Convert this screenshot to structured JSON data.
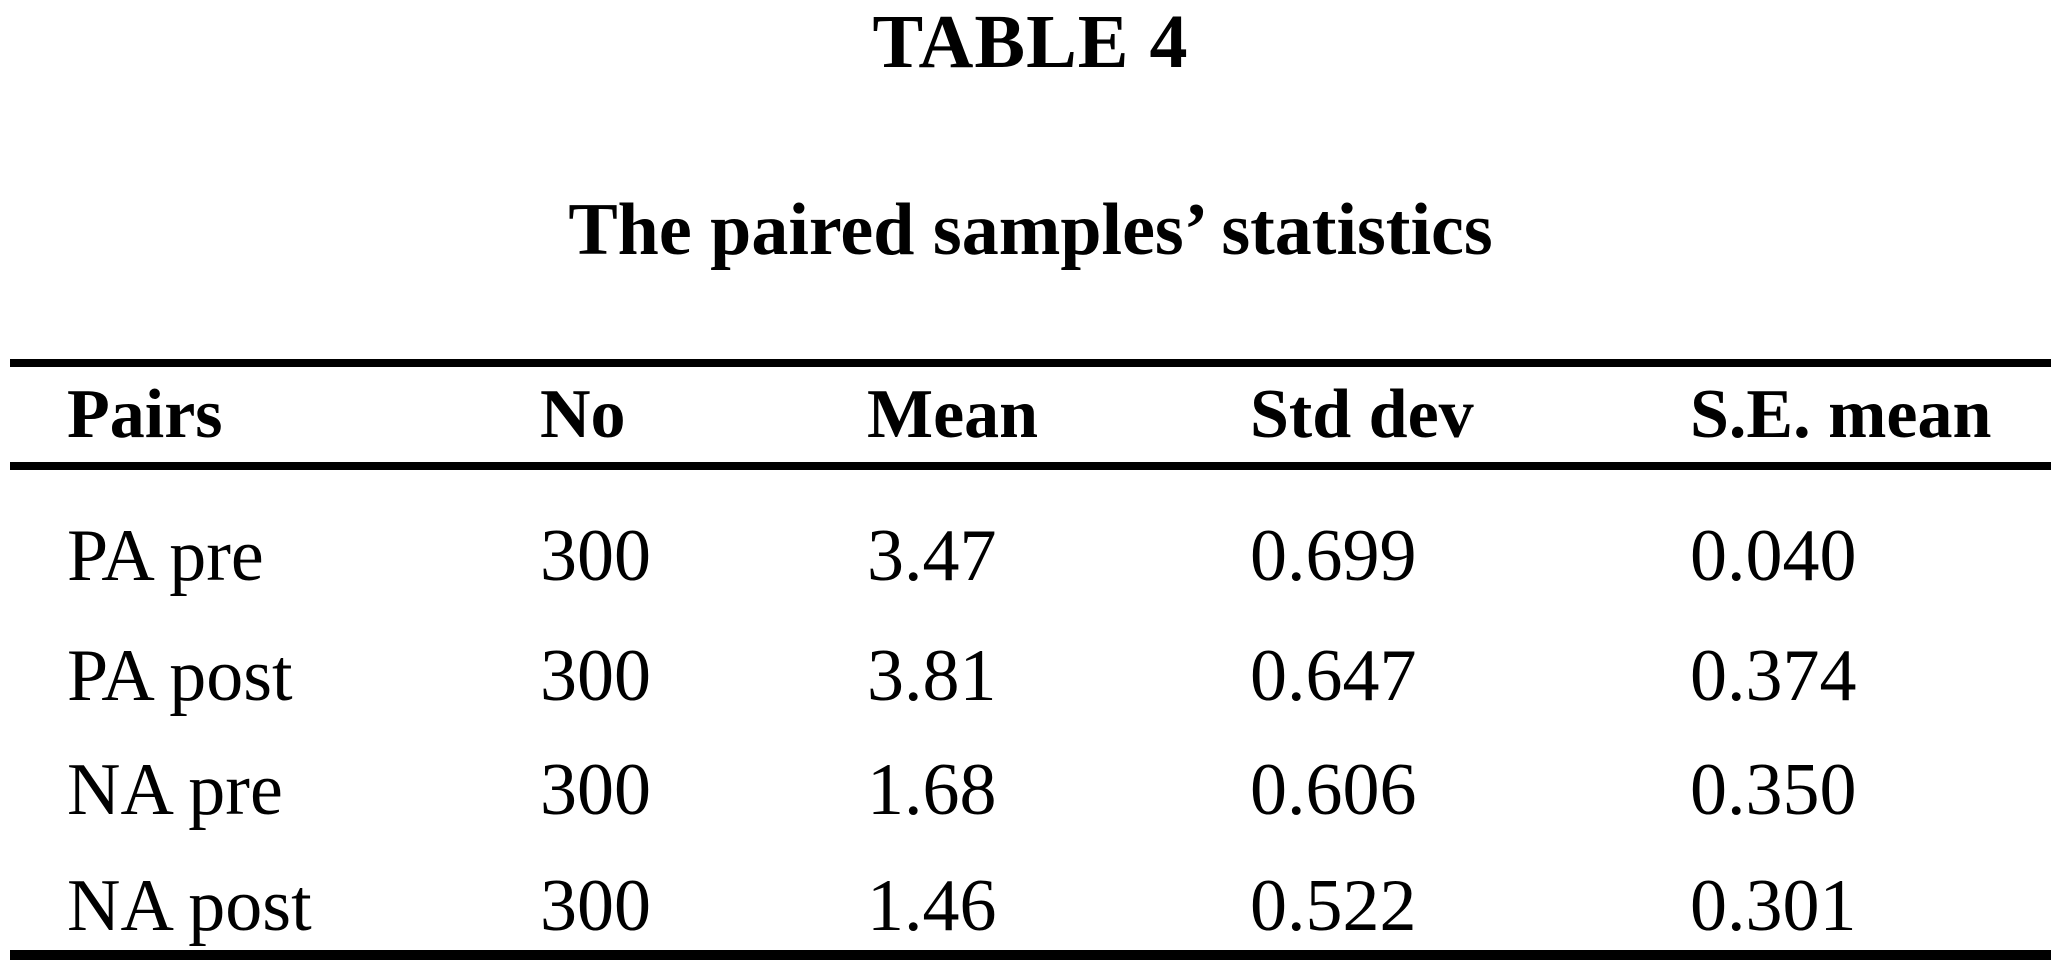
{
  "page": {
    "title": "TABLE 4",
    "subtitle": "The paired samples’ statistics"
  },
  "table": {
    "columns": {
      "pairs": "Pairs",
      "no": "No",
      "mean": "Mean",
      "std_dev": "Std dev",
      "se_mean": "S.E. mean"
    },
    "rows": [
      {
        "pairs": "PA pre",
        "no": "300",
        "mean": "3.47",
        "std_dev": "0.699",
        "se_mean": "0.040"
      },
      {
        "pairs": "PA post",
        "no": "300",
        "mean": "3.81",
        "std_dev": "0.647",
        "se_mean": "0.374"
      },
      {
        "pairs": "NA pre",
        "no": "300",
        "mean": "1.68",
        "std_dev": "0.606",
        "se_mean": "0.350"
      },
      {
        "pairs": "NA post",
        "no": "300",
        "mean": "1.46",
        "std_dev": "0.522",
        "se_mean": "0.301"
      }
    ]
  },
  "colors": {
    "text": "#000000",
    "background": "#ffffff",
    "rule": "#000000"
  }
}
